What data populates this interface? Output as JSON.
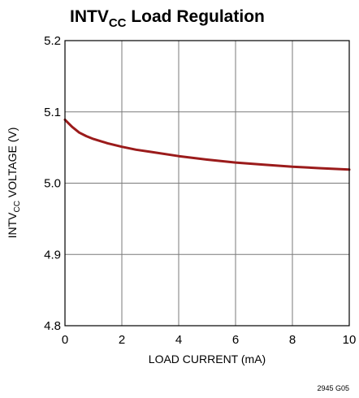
{
  "chart_data": {
    "type": "line",
    "title": {
      "prefix": "INTV",
      "subscript": "CC",
      "suffix": " Load Regulation"
    },
    "xlabel": "LOAD CURRENT (mA)",
    "ylabel": {
      "prefix": "INTV",
      "subscript": "CC",
      "suffix": " VOLTAGE (V)"
    },
    "xlim": [
      0,
      10
    ],
    "ylim": [
      4.8,
      5.2
    ],
    "x_ticks": [
      0,
      2,
      4,
      6,
      8,
      10
    ],
    "y_ticks": [
      4.8,
      4.9,
      5.0,
      5.1,
      5.2
    ],
    "y_tick_labels": [
      "4.8",
      "4.9",
      "5.0",
      "5.1",
      "5.2"
    ],
    "grid": true,
    "series": [
      {
        "color": "#9b1b1b",
        "x": [
          0,
          0.25,
          0.5,
          0.75,
          1,
          1.5,
          2,
          2.5,
          3,
          4,
          5,
          6,
          7,
          8,
          9,
          10
        ],
        "y": [
          5.089,
          5.079,
          5.071,
          5.066,
          5.062,
          5.056,
          5.051,
          5.047,
          5.044,
          5.038,
          5.033,
          5.029,
          5.026,
          5.023,
          5.021,
          5.019
        ]
      }
    ],
    "figure_code": "2945 G05"
  }
}
